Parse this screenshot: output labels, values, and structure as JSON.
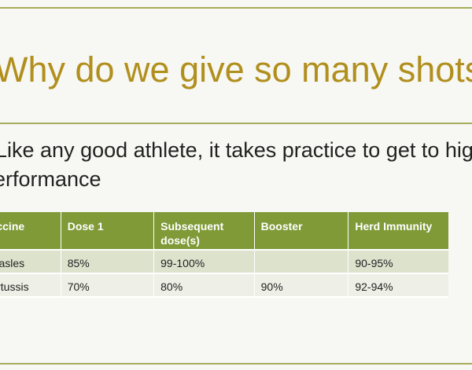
{
  "slide": {
    "title": "Why do we give so many shots?",
    "body_lines": [
      "Like any good athlete, it takes practice to get to high",
      "performance"
    ]
  },
  "table": {
    "headers": [
      "Vaccine",
      "Dose 1",
      "Subsequent dose(s)",
      "Booster",
      "Herd Immunity"
    ],
    "rows": [
      [
        "Measles",
        "85%",
        "99-100%",
        "",
        "90-95%"
      ],
      [
        "Pertussis",
        "70%",
        "80%",
        "90%",
        "92-94%"
      ]
    ]
  },
  "colors": {
    "title": "#b18f1d",
    "accent_line": "#a7ad5a",
    "table_header": "#7f9a37",
    "row_odd": "#dde2cd",
    "row_even": "#eeefe6"
  }
}
